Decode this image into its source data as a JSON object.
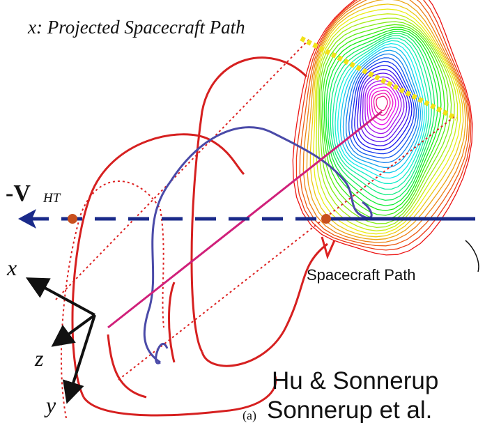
{
  "header": {
    "title": "x: Projected Spacecraft Path"
  },
  "velocity_label": {
    "main": "-V",
    "subscript": "HT"
  },
  "path_label": "Spacecraft Path",
  "axes": {
    "x": "x",
    "z": "z",
    "y": "y"
  },
  "credits": [
    "Hu & Sonnerup",
    "Sonnerup et al."
  ],
  "panel_label": "(a)"
}
